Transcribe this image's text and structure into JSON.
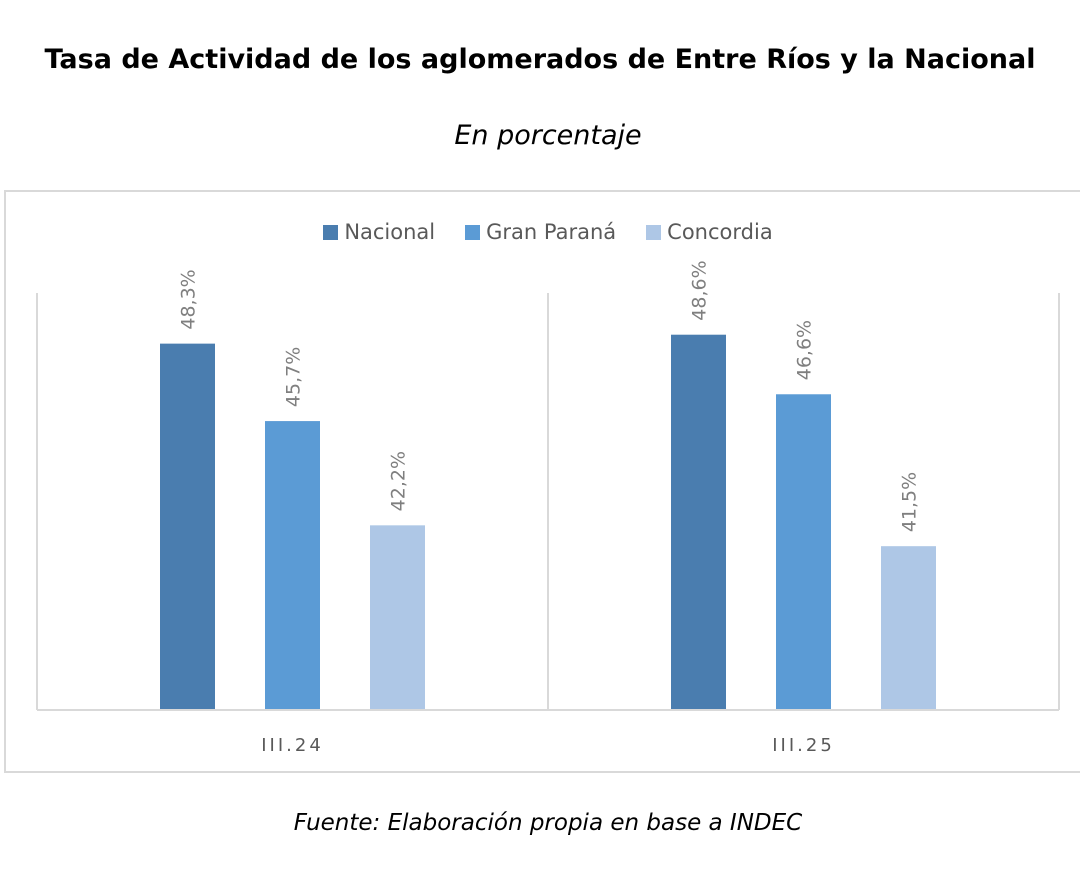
{
  "page": {
    "title": "Tasa de Actividad de los aglomerados de Entre Ríos y la Nacional",
    "subtitle": "En porcentaje",
    "source": "Fuente: Elaboración propia en base a INDEC"
  },
  "chart_data": {
    "type": "bar",
    "title": "Tasa de Actividad de los aglomerados de Entre Ríos y la Nacional",
    "subtitle": "En porcentaje",
    "xlabel": "",
    "ylabel": "",
    "categories": [
      "III.24",
      "III.25"
    ],
    "series": [
      {
        "name": "Nacional",
        "color": "#4a7daf",
        "values": [
          48.3,
          48.6
        ],
        "labels": [
          "48,3%",
          "48,6%"
        ]
      },
      {
        "name": "Gran Paraná",
        "color": "#5b9bd5",
        "values": [
          45.7,
          46.6
        ],
        "labels": [
          "45,7%",
          "46,6%"
        ]
      },
      {
        "name": "Concordia",
        "color": "#aec7e6",
        "values": [
          42.2,
          41.5
        ],
        "labels": [
          "42,2%",
          "41,5%"
        ]
      }
    ],
    "ylim": [
      36,
      50
    ],
    "grid": false,
    "legend_position": "top-center",
    "data_label_color": "#7f7f7f",
    "axis_color": "#d9d9d9"
  }
}
